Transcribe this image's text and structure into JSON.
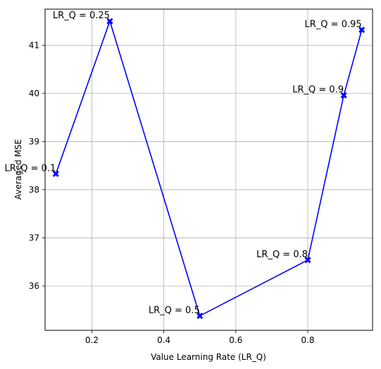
{
  "chart_data": {
    "type": "line",
    "xlabel": "Value Learning Rate (LR_Q)",
    "ylabel": "Averaged MSE",
    "xlim": [
      0.07,
      0.98
    ],
    "ylim": [
      35.08,
      41.75
    ],
    "xticks": [
      "0.2",
      "0.4",
      "0.6",
      "0.8"
    ],
    "yticks": [
      "36",
      "37",
      "38",
      "39",
      "40",
      "41"
    ],
    "grid": true,
    "series": [
      {
        "color": "#0000ff",
        "marker": "x",
        "x": [
          0.1,
          0.25,
          0.5,
          0.8,
          0.9,
          0.95
        ],
        "y": [
          38.33,
          41.5,
          35.38,
          36.54,
          39.96,
          41.32
        ],
        "labels": [
          "LR_Q = 0.1",
          "LR_Q = 0.25",
          "LR_Q = 0.5",
          "LR_Q = 0.8",
          "LR_Q = 0.9",
          "LR_Q = 0.95"
        ]
      }
    ]
  }
}
